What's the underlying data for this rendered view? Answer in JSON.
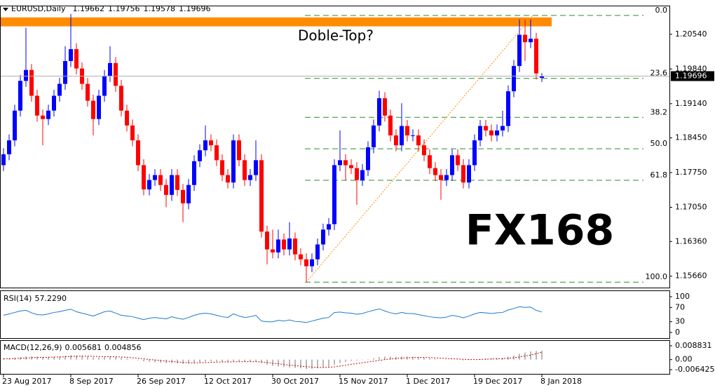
{
  "chart_data": {
    "type": "candlestick",
    "symbol": "EURUSD,Daily",
    "categories": [
      "23 Aug 2017",
      null,
      null,
      null,
      null,
      null,
      null,
      null,
      null,
      null,
      null,
      null,
      "8 Sep 2017",
      null,
      null,
      null,
      null,
      null,
      null,
      null,
      null,
      null,
      null,
      null,
      "26 Sep 2017",
      null,
      null,
      null,
      null,
      null,
      null,
      null,
      null,
      null,
      null,
      null,
      "12 Oct 2017",
      null,
      null,
      null,
      null,
      null,
      null,
      null,
      null,
      null,
      null,
      null,
      "30 Oct 2017",
      null,
      null,
      null,
      null,
      null,
      null,
      null,
      null,
      null,
      null,
      null,
      "15 Nov 2017",
      null,
      null,
      null,
      null,
      null,
      null,
      null,
      null,
      null,
      null,
      null,
      "1 Dec 2017",
      null,
      null,
      null,
      null,
      null,
      null,
      null,
      null,
      null,
      null,
      null,
      "19 Dec 2017",
      null,
      null,
      null,
      null,
      null,
      null,
      null,
      null,
      null,
      null,
      null,
      "8 Jan 2018"
    ],
    "open": [
      1.179,
      1.1812,
      1.184,
      1.19,
      1.196,
      1.1982,
      1.193,
      1.189,
      1.1883,
      1.19,
      1.193,
      1.1954,
      1.2,
      1.2024,
      1.1985,
      1.1954,
      1.192,
      1.1883,
      1.193,
      1.197,
      1.1996,
      1.195,
      1.19,
      1.187,
      1.184,
      1.179,
      1.1741,
      1.176,
      1.177,
      1.175,
      1.173,
      1.177,
      1.174,
      1.1713,
      1.175,
      1.1798,
      1.182,
      1.184,
      1.183,
      1.18,
      1.177,
      1.1755,
      1.184,
      1.18,
      1.176,
      1.177,
      1.18,
      1.1656,
      1.162,
      1.1614,
      1.164,
      1.162,
      1.1642,
      1.161,
      1.16,
      1.1586,
      1.16,
      1.163,
      1.166,
      1.1671,
      1.179,
      1.18,
      1.179,
      1.1784,
      1.176,
      1.178,
      1.1826,
      1.187,
      1.1925,
      1.189,
      1.185,
      1.183,
      1.1869,
      1.185,
      1.185,
      1.183,
      1.181,
      1.1784,
      1.177,
      1.176,
      1.177,
      1.181,
      1.179,
      1.1755,
      1.179,
      1.184,
      1.1869,
      1.186,
      1.185,
      1.186,
      1.1869,
      1.1939,
      1.199,
      1.2053,
      1.2038,
      1.2045,
      1.19662
    ],
    "high": [
      1.1824,
      1.1852,
      1.1912,
      1.1972,
      1.2067,
      1.1994,
      1.1942,
      1.1902,
      1.1912,
      1.1942,
      1.1966,
      1.203,
      1.2095,
      1.2036,
      1.1997,
      1.1966,
      1.1932,
      1.1942,
      1.1982,
      1.203,
      1.2008,
      1.1962,
      1.1912,
      1.1882,
      1.1852,
      1.1802,
      1.1772,
      1.1782,
      1.1782,
      1.1762,
      1.1782,
      1.1782,
      1.1752,
      1.1762,
      1.181,
      1.1832,
      1.187,
      1.1852,
      1.1842,
      1.1812,
      1.1782,
      1.1852,
      1.1852,
      1.1812,
      1.1782,
      1.184,
      1.1812,
      1.1668,
      1.166,
      1.166,
      1.1652,
      1.1675,
      1.1654,
      1.1622,
      1.1612,
      1.1612,
      1.1642,
      1.1672,
      1.1683,
      1.1802,
      1.186,
      1.1812,
      1.1802,
      1.1796,
      1.1792,
      1.1838,
      1.1882,
      1.194,
      1.1937,
      1.1902,
      1.1862,
      1.1915,
      1.1881,
      1.1862,
      1.1862,
      1.1842,
      1.1822,
      1.1796,
      1.1782,
      1.1782,
      1.1822,
      1.1822,
      1.1802,
      1.1802,
      1.1852,
      1.1881,
      1.1881,
      1.1872,
      1.1872,
      1.19,
      1.1951,
      1.2002,
      1.2084,
      1.2084,
      1.2084,
      1.2057,
      1.19756
    ],
    "low": [
      1.1778,
      1.18,
      1.1828,
      1.1888,
      1.1948,
      1.1918,
      1.1878,
      1.183,
      1.1871,
      1.1888,
      1.1918,
      1.1942,
      1.1988,
      1.1973,
      1.1942,
      1.1908,
      1.185,
      1.1871,
      1.1918,
      1.1958,
      1.1938,
      1.1888,
      1.1858,
      1.1828,
      1.1778,
      1.1729,
      1.1729,
      1.1748,
      1.1738,
      1.1705,
      1.1718,
      1.1728,
      1.1675,
      1.1701,
      1.1738,
      1.1786,
      1.1808,
      1.1818,
      1.1788,
      1.1758,
      1.1743,
      1.1743,
      1.1788,
      1.1748,
      1.1748,
      1.1758,
      1.1644,
      1.159,
      1.1602,
      1.1602,
      1.1608,
      1.1608,
      1.1598,
      1.1588,
      1.1555,
      1.1574,
      1.1588,
      1.1618,
      1.1648,
      1.1659,
      1.1778,
      1.176,
      1.1772,
      1.171,
      1.1748,
      1.1768,
      1.1814,
      1.1858,
      1.1878,
      1.1838,
      1.1818,
      1.1818,
      1.1838,
      1.1838,
      1.1818,
      1.1798,
      1.1772,
      1.1758,
      1.172,
      1.1748,
      1.1758,
      1.1778,
      1.1743,
      1.1743,
      1.1778,
      1.1828,
      1.1848,
      1.1838,
      1.1838,
      1.1848,
      1.1857,
      1.1927,
      1.1978,
      1.2,
      1.2026,
      1.1963,
      1.19578
    ],
    "close": [
      1.1812,
      1.184,
      1.19,
      1.196,
      1.1982,
      1.193,
      1.189,
      1.1883,
      1.19,
      1.193,
      1.1954,
      1.2,
      1.2024,
      1.1985,
      1.1954,
      1.192,
      1.1883,
      1.193,
      1.197,
      1.1996,
      1.195,
      1.19,
      1.187,
      1.184,
      1.179,
      1.1741,
      1.176,
      1.177,
      1.175,
      1.173,
      1.177,
      1.174,
      1.1713,
      1.175,
      1.1798,
      1.182,
      1.184,
      1.183,
      1.18,
      1.177,
      1.1755,
      1.184,
      1.18,
      1.176,
      1.177,
      1.18,
      1.1656,
      1.162,
      1.1614,
      1.164,
      1.162,
      1.1642,
      1.161,
      1.16,
      1.1586,
      1.16,
      1.163,
      1.166,
      1.1671,
      1.179,
      1.18,
      1.179,
      1.1784,
      1.176,
      1.178,
      1.1826,
      1.187,
      1.1925,
      1.189,
      1.185,
      1.183,
      1.1869,
      1.185,
      1.185,
      1.183,
      1.181,
      1.1784,
      1.177,
      1.176,
      1.177,
      1.181,
      1.179,
      1.1755,
      1.179,
      1.184,
      1.1869,
      1.186,
      1.185,
      1.186,
      1.1869,
      1.1939,
      1.199,
      1.2053,
      1.2038,
      1.2045,
      1.1975,
      1.19696
    ],
    "colors": {
      "up": "#0000ff",
      "down": "#ff0000"
    },
    "ylim": [
      1.1543,
      1.2109
    ],
    "yticks": [
      {
        "value": 1.2054,
        "label": "1.20540"
      },
      {
        "value": 1.1984,
        "label": "1.19840"
      },
      {
        "value": 1.1914,
        "label": "1.19140"
      },
      {
        "value": 1.1845,
        "label": "1.18450"
      },
      {
        "value": 1.1775,
        "label": "1.17750"
      },
      {
        "value": 1.1705,
        "label": "1.17050"
      },
      {
        "value": 1.1636,
        "label": "1.16360"
      },
      {
        "value": 1.1566,
        "label": "1.15660"
      }
    ],
    "annotation": {
      "text": "Doble-Top?",
      "color": "#ff8c00",
      "band": [
        1.207,
        1.2088
      ]
    },
    "fib": {
      "high": 1.2092,
      "low": 1.1554,
      "color": "#2e8b2e",
      "levels": [
        {
          "value": 0,
          "label": "0.0"
        },
        23.6,
        38.2,
        {
          "value": 50,
          "label": "50.0"
        },
        61.8,
        {
          "value": 100,
          "label": "100.0"
        }
      ]
    },
    "watermark": "FX168",
    "rsi": {
      "title": "RSI(14)",
      "last_label": "57.2290",
      "color": "#1e78d0",
      "ylim": [
        0,
        100
      ],
      "yticks": [
        100,
        70,
        30,
        0
      ],
      "values": [
        48,
        52,
        56,
        60,
        62,
        55,
        50,
        49,
        52,
        56,
        58,
        62,
        65,
        58,
        54,
        50,
        46,
        52,
        58,
        60,
        54,
        48,
        46,
        44,
        40,
        36,
        40,
        42,
        40,
        38,
        44,
        40,
        37,
        42,
        48,
        52,
        54,
        52,
        48,
        44,
        42,
        52,
        46,
        42,
        44,
        48,
        32,
        30,
        30,
        34,
        32,
        35,
        31,
        30,
        28,
        32,
        36,
        40,
        42,
        56,
        57,
        55,
        54,
        51,
        53,
        58,
        62,
        66,
        60,
        55,
        52,
        56,
        53,
        53,
        50,
        47,
        44,
        42,
        41,
        43,
        48,
        45,
        41,
        46,
        52,
        56,
        55,
        53,
        55,
        56,
        63,
        67,
        72,
        70,
        71,
        62,
        57.229
      ]
    },
    "macd": {
      "title": "MACD(12,26,9)",
      "color": "#a0a0a0",
      "signal_color": "#cc0000",
      "ylim": [
        -0.0082,
        0.0115
      ],
      "yticks": [
        0.008831,
        {
          "value": 0,
          "label": "0.00"
        },
        -0.006425
      ],
      "values": [
        0.0008,
        0.0009,
        0.0012,
        0.0016,
        0.002,
        0.0021,
        0.0019,
        0.0017,
        0.0017,
        0.0018,
        0.002,
        0.0024,
        0.0028,
        0.0027,
        0.0024,
        0.002,
        0.0015,
        0.0014,
        0.0016,
        0.0018,
        0.0016,
        0.0012,
        0.0007,
        0.0002,
        -0.0004,
        -0.0011,
        -0.0014,
        -0.0016,
        -0.0019,
        -0.0022,
        -0.0022,
        -0.0024,
        -0.0027,
        -0.0026,
        -0.0022,
        -0.0017,
        -0.0013,
        -0.0011,
        -0.0011,
        -0.0013,
        -0.0015,
        -0.0011,
        -0.0011,
        -0.0013,
        -0.0013,
        -0.0012,
        -0.0022,
        -0.0032,
        -0.004,
        -0.0044,
        -0.0048,
        -0.005,
        -0.0053,
        -0.0056,
        -0.006,
        -0.0059,
        -0.0055,
        -0.005,
        -0.0045,
        -0.0032,
        -0.0021,
        -0.0014,
        -0.0008,
        -0.0005,
        -0.0002,
        0.0003,
        0.0009,
        0.0016,
        0.0019,
        0.0019,
        0.0018,
        0.002,
        0.0019,
        0.0018,
        0.0016,
        0.0012,
        0.0008,
        0.0004,
        0.0001,
        -0.0001,
        0,
        -0.0001,
        -0.0004,
        -0.0003,
        0,
        0.0004,
        0.0007,
        0.0008,
        0.001,
        0.0012,
        0.0019,
        0.0027,
        0.0037,
        0.0045,
        0.0052,
        0.0055,
        0.005681
      ],
      "signal": [
        0.0005,
        0.0006,
        0.0007,
        0.0008,
        0.001,
        0.0012,
        0.0014,
        0.0015,
        0.0015,
        0.0016,
        0.0017,
        0.0018,
        0.002,
        0.0021,
        0.0022,
        0.0022,
        0.0021,
        0.002,
        0.0019,
        0.0019,
        0.0018,
        0.0017,
        0.0015,
        0.0012,
        0.0009,
        0.0005,
        0.0001,
        -0.0002,
        -0.0006,
        -0.001,
        -0.0013,
        -0.0015,
        -0.0018,
        -0.002,
        -0.0021,
        -0.002,
        -0.0019,
        -0.0017,
        -0.0016,
        -0.0015,
        -0.0015,
        -0.0014,
        -0.0014,
        -0.0013,
        -0.0013,
        -0.0013,
        -0.0015,
        -0.0018,
        -0.0023,
        -0.0027,
        -0.0031,
        -0.0035,
        -0.0038,
        -0.0042,
        -0.0045,
        -0.0048,
        -0.005,
        -0.005,
        -0.0049,
        -0.0046,
        -0.0041,
        -0.0036,
        -0.003,
        -0.0025,
        -0.002,
        -0.0015,
        -0.001,
        -0.0005,
        0,
        0.0004,
        0.0007,
        0.001,
        0.0012,
        0.0013,
        0.0014,
        0.0014,
        0.0013,
        0.0011,
        0.0009,
        0.0007,
        0.0005,
        0.0004,
        0.0002,
        0.0001,
        0,
        0.0001,
        0.0002,
        0.0004,
        0.0005,
        0.0006,
        0.0009,
        0.0012,
        0.0017,
        0.0023,
        0.0029,
        0.0037,
        0.004856
      ]
    }
  }
}
